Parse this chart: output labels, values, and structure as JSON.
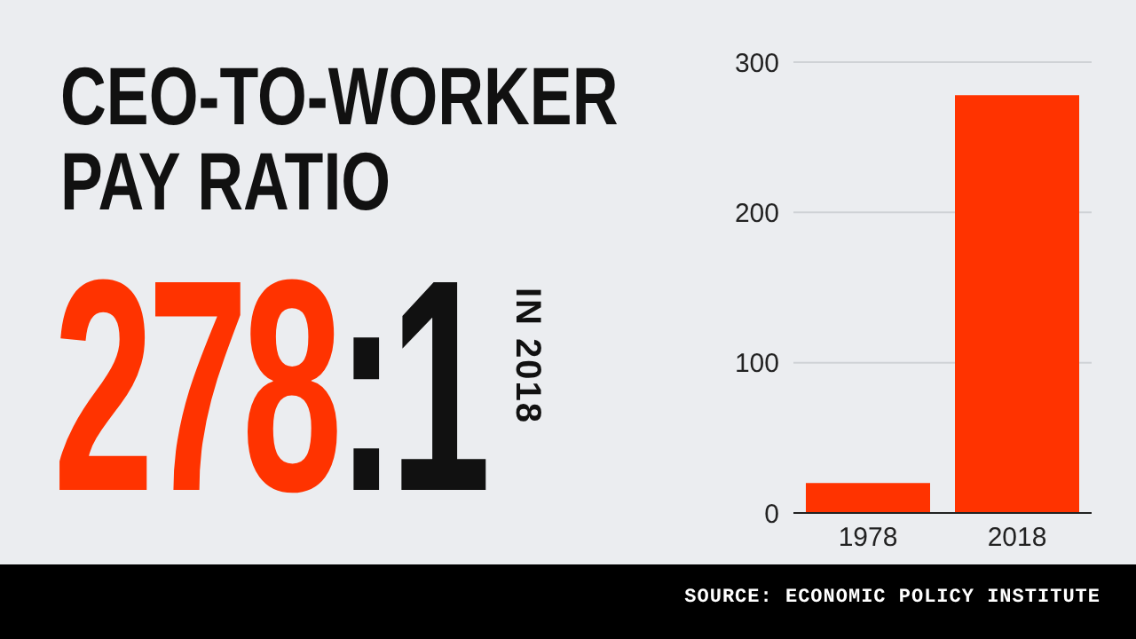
{
  "chart_data": {
    "type": "bar",
    "title": "CEO-TO-WORKER PAY RATIO",
    "categories": [
      "1978",
      "2018"
    ],
    "values": [
      20,
      278
    ],
    "color": "#ff3300",
    "ylim": [
      0,
      300
    ],
    "yticks": [
      0,
      100,
      200,
      300
    ],
    "grid": "y",
    "annotations": [
      "278:1",
      "IN 2018",
      "SOURCE: ECONOMIC POLICY INSTITUTE"
    ]
  }
}
